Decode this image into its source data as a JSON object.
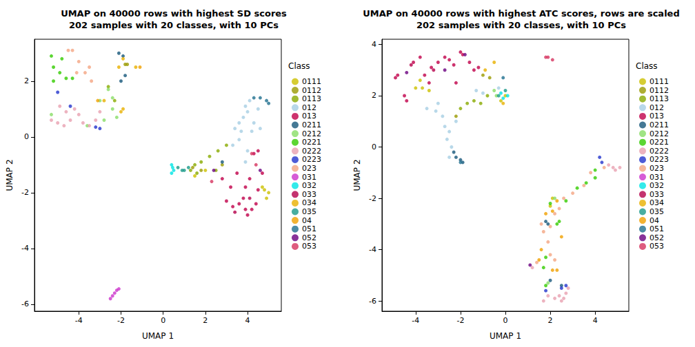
{
  "chart_data": [
    {
      "type": "scatter",
      "title": "UMAP on 40000 rows with highest SD scores\n202 samples with 20 classes, with 10 PCs",
      "x_label": "UMAP 1",
      "y_label": "UMAP 2",
      "legend_title": "Class",
      "legend": "right",
      "xlim": [
        -6.1,
        5.6
      ],
      "xticks": [
        -4,
        -2,
        0,
        2,
        4
      ],
      "ylim": [
        -6.25,
        3.5
      ],
      "yticks": [
        -6,
        -4,
        -2,
        0,
        2
      ],
      "series": [
        {
          "name": "0111",
          "color": "#CCC000",
          "x": [
            1.5,
            2.0,
            4.8,
            5.0,
            4.9,
            4.7
          ],
          "y": [
            -1.4,
            -1.2,
            -1.9,
            -2.0,
            -2.2,
            -1.8
          ]
        },
        {
          "name": "0112",
          "color": "#9A9A00",
          "x": [
            -1.8,
            -1.7,
            1.8,
            2.8,
            1.4
          ],
          "y": [
            2.6,
            2.6,
            -1.2,
            -1.0,
            -1.1
          ]
        },
        {
          "name": "0113",
          "color": "#88AA00",
          "x": [
            -2.6,
            -2.3,
            1.3,
            1.5,
            1.6,
            2.2,
            2.6,
            3.0,
            1.8,
            2.5
          ],
          "y": [
            1.8,
            1.3,
            -1.2,
            -1.0,
            -1.3,
            -0.7,
            -0.5,
            -0.3,
            -0.9,
            -1.2
          ]
        },
        {
          "name": "012",
          "color": "#A6CEE3",
          "x": [
            3.4,
            3.6,
            3.8,
            4.0,
            4.1,
            3.9,
            3.7,
            4.3,
            4.5,
            3.6,
            4.0,
            4.2,
            3.3,
            4.6,
            3.9
          ],
          "y": [
            0.3,
            0.5,
            0.7,
            0.9,
            1.3,
            1.1,
            0.2,
            0.5,
            1.0,
            -0.1,
            -0.5,
            0.2,
            -0.3,
            0.3,
            -0.9
          ]
        },
        {
          "name": "013",
          "color": "#C0004A",
          "x": [
            2.8,
            3.2,
            3.0,
            3.3,
            3.6,
            3.9,
            4.0,
            4.2,
            3.8,
            4.4,
            4.5,
            4.1,
            3.5,
            4.3,
            4.5,
            4.7,
            3.9
          ],
          "y": [
            -1.5,
            -1.8,
            -2.3,
            -2.5,
            -2.4,
            -2.6,
            -2.8,
            -2.6,
            -2.2,
            -2.4,
            -1.9,
            -1.5,
            -1.3,
            -0.6,
            -0.5,
            -1.3,
            -1.8
          ]
        },
        {
          "name": "0211",
          "color": "#17577A",
          "x": [
            -2.1,
            -1.9,
            -1.8,
            -2.0,
            2.8
          ],
          "y": [
            3.0,
            2.9,
            2.2,
            2.0,
            -0.9
          ]
        },
        {
          "name": "0212",
          "color": "#88DD66",
          "x": [
            -5.3,
            -3.6,
            -2.8,
            -2.4,
            -2.2,
            -2.6,
            -2.4,
            -3.0
          ],
          "y": [
            0.8,
            0.4,
            0.6,
            1.0,
            0.7,
            1.7,
            1.4,
            1.3
          ]
        },
        {
          "name": "0221",
          "color": "#33CC00",
          "x": [
            -5.3,
            -5.2,
            -4.9,
            -4.6,
            -4.8,
            -5.2,
            -4.3
          ],
          "y": [
            2.9,
            2.5,
            2.3,
            2.1,
            2.8,
            2.0,
            2.1
          ]
        },
        {
          "name": "0222",
          "color": "#E8A0B0",
          "x": [
            -5.3,
            -5.0,
            -4.7,
            -4.4,
            -4.6,
            -4.2,
            -3.8,
            -3.5,
            -3.2,
            -4.9,
            -3.0,
            -4.0
          ],
          "y": [
            0.6,
            0.5,
            0.4,
            0.6,
            0.9,
            1.0,
            0.5,
            0.4,
            0.6,
            1.1,
            0.9,
            0.8
          ]
        },
        {
          "name": "0223",
          "color": "#2233CC",
          "x": [
            -5.0,
            -3.2,
            -3.0,
            -4.4
          ],
          "y": [
            1.6,
            0.35,
            0.3,
            1.1
          ]
        },
        {
          "name": "023",
          "color": "#F4A582",
          "x": [
            -4.5,
            -4.3,
            -4.0,
            -3.7,
            -3.5,
            -4.1,
            -3.4
          ],
          "y": [
            3.1,
            3.1,
            2.7,
            2.3,
            2.5,
            2.3,
            2.0
          ]
        },
        {
          "name": "031",
          "color": "#CC33CC",
          "x": [
            -2.2,
            -2.3,
            -2.4,
            -2.5,
            -2.1
          ],
          "y": [
            -5.5,
            -5.6,
            -5.7,
            -5.8,
            -5.45
          ]
        },
        {
          "name": "032",
          "color": "#00E5E5",
          "x": [
            0.4,
            0.5,
            0.4,
            0.45
          ],
          "y": [
            -1.0,
            -1.2,
            -1.3,
            -1.1
          ]
        },
        {
          "name": "033",
          "color": "#B5004B",
          "x": [
            3.4,
            4.1
          ],
          "y": [
            -2.7,
            -2.2
          ]
        },
        {
          "name": "034",
          "color": "#E8B000",
          "x": [
            -2.8,
            -2.0,
            -1.9,
            -2.1,
            -1.9,
            -1.3
          ],
          "y": [
            1.3,
            0.9,
            1.0,
            2.5,
            2.8,
            2.5
          ]
        },
        {
          "name": "035",
          "color": "#1A9A8A",
          "x": [
            0.7,
            0.9,
            1.0,
            1.2
          ],
          "y": [
            -1.1,
            -1.2,
            -1.2,
            -1.1
          ]
        },
        {
          "name": "04",
          "color": "#F0A000",
          "x": [
            -3.1,
            -1.1
          ],
          "y": [
            1.3,
            2.5
          ]
        },
        {
          "name": "051",
          "color": "#1F6F8F",
          "x": [
            4.3,
            4.6,
            4.9,
            5.0
          ],
          "y": [
            1.4,
            1.4,
            1.3,
            1.2
          ]
        },
        {
          "name": "052",
          "color": "#6A0080",
          "x": [
            2.4,
            4.6
          ],
          "y": [
            -1.2,
            -1.2
          ]
        },
        {
          "name": "053",
          "color": "#D6335F",
          "x": [
            2.3,
            4.2,
            4.4
          ],
          "y": [
            -1.6,
            -0.6,
            -1.0
          ]
        }
      ]
    },
    {
      "type": "scatter",
      "title": "UMAP on 40000 rows with highest ATC scores, rows are scaled\n202 samples with 20 classes, with 10 PCs",
      "x_label": "UMAP 1",
      "y_label": "UMAP 2",
      "legend_title": "Class",
      "legend": "right",
      "xlim": [
        -5.5,
        5.5
      ],
      "xticks": [
        -4,
        -2,
        0,
        2,
        4
      ],
      "ylim": [
        -6.4,
        4.2
      ],
      "yticks": [
        -6,
        -4,
        -2,
        0,
        2,
        4
      ],
      "series": [
        {
          "name": "0111",
          "color": "#CCC000",
          "x": [
            -4.0,
            -3.7,
            -3.4,
            -3.8,
            0.0,
            -0.2,
            2.1,
            2.0
          ],
          "y": [
            2.3,
            2.3,
            2.2,
            2.6,
            2.0,
            1.8,
            -2.0,
            -2.3
          ]
        },
        {
          "name": "0112",
          "color": "#9A9A00",
          "x": [
            -2.2,
            -0.7,
            -1.0
          ],
          "y": [
            1.2,
            2.7,
            2.8
          ]
        },
        {
          "name": "0113",
          "color": "#88AA00",
          "x": [
            -2.0,
            -1.7,
            -1.4,
            -1.1,
            -0.8
          ],
          "y": [
            1.5,
            1.7,
            1.8,
            1.7,
            2.0
          ]
        },
        {
          "name": "012",
          "color": "#A6CEE3",
          "x": [
            -3.5,
            -3.1,
            -2.8,
            -2.7,
            -2.5,
            -2.6,
            -2.4,
            -2.5,
            -3.0,
            -1.3,
            -1.0,
            -0.3,
            -2.2
          ],
          "y": [
            1.5,
            1.4,
            1.2,
            0.8,
            0.6,
            0.3,
            0.0,
            -0.4,
            1.7,
            2.2,
            2.1,
            2.3,
            1.0
          ]
        },
        {
          "name": "013",
          "color": "#C0004A",
          "x": [
            -4.9,
            -4.8,
            -4.5,
            -4.4,
            -4.1,
            -3.8,
            -3.6,
            -3.3,
            -3.0,
            -2.7,
            -2.5,
            -2.3,
            -1.9,
            -1.6,
            -1.4,
            -2.2,
            -3.4,
            -2.0,
            -1.2
          ],
          "y": [
            2.7,
            2.8,
            2.0,
            1.8,
            3.3,
            3.5,
            2.8,
            3.1,
            3.3,
            3.5,
            3.4,
            3.2,
            3.6,
            3.3,
            3.0,
            2.5,
            2.5,
            3.7,
            3.1
          ]
        },
        {
          "name": "0211",
          "color": "#17577A",
          "x": [
            -2.3,
            -2.2,
            -2.0,
            -1.9,
            1.8,
            1.9,
            2.0,
            2.5
          ],
          "y": [
            -0.2,
            -0.4,
            -0.5,
            -0.6,
            -2.9,
            -3.0,
            -5.2,
            -5.4
          ]
        },
        {
          "name": "0212",
          "color": "#88DD66",
          "x": [
            -0.5,
            -0.4,
            1.9,
            2.2
          ],
          "y": [
            2.2,
            2.0,
            -5.3,
            -2.0
          ]
        },
        {
          "name": "0221",
          "color": "#33CC00",
          "x": [
            4.0,
            4.0,
            3.6,
            3.2,
            2.7,
            2.0,
            1.8,
            1.8,
            2.3,
            2.4,
            1.7
          ],
          "y": [
            -0.9,
            -1.2,
            -1.4,
            -1.6,
            -2.1,
            -2.2,
            -4.3,
            -5.4,
            -3.0,
            -2.9,
            -4.7
          ]
        },
        {
          "name": "0222",
          "color": "#E8A0B0",
          "x": [
            4.8,
            4.9,
            5.1,
            4.6,
            2.2,
            2.4,
            2.7,
            2.6,
            1.9,
            1.2,
            2.8,
            1.7,
            2.5
          ],
          "y": [
            -0.8,
            -0.9,
            -0.8,
            -0.7,
            -5.9,
            -5.8,
            -5.7,
            -5.9,
            -5.8,
            -4.7,
            -5.5,
            -6.0,
            -6.0
          ]
        },
        {
          "name": "0223",
          "color": "#2233CC",
          "x": [
            4.2,
            4.3,
            2.5,
            1.8,
            2.7
          ],
          "y": [
            -0.4,
            -0.6,
            -5.5,
            -5.6,
            -5.4
          ]
        },
        {
          "name": "023",
          "color": "#F4A582",
          "x": [
            4.4,
            3.8,
            3.5,
            3.0,
            2.6,
            2.4,
            2.2,
            2.0,
            1.7,
            1.9,
            2.0,
            1.4,
            1.6,
            2.2
          ],
          "y": [
            -0.8,
            -1.0,
            -1.5,
            -1.8,
            -2.0,
            -2.4,
            -2.6,
            -3.1,
            -3.3,
            -3.7,
            -4.2,
            -4.5,
            -3.0,
            -4.4
          ]
        },
        {
          "name": "031",
          "color": "#CC33CC",
          "x": [],
          "y": []
        },
        {
          "name": "032",
          "color": "#00E5E5",
          "x": [
            -0.2,
            0.1,
            -0.1
          ],
          "y": [
            2.1,
            2.0,
            1.9
          ]
        },
        {
          "name": "033",
          "color": "#B5004B",
          "x": [
            -4.2,
            -3.2
          ],
          "y": [
            3.2,
            3.0
          ]
        },
        {
          "name": "034",
          "color": "#E8B000",
          "x": [
            -0.5,
            -0.9,
            -0.1
          ],
          "y": [
            3.3,
            3.0,
            1.7
          ]
        },
        {
          "name": "035",
          "color": "#1A9A8A",
          "x": [
            -0.3,
            0.0
          ],
          "y": [
            2.0,
            2.2
          ]
        },
        {
          "name": "04",
          "color": "#F0A000",
          "x": [
            1.8,
            2.1,
            1.6,
            1.5,
            2.1,
            2.3,
            2.5,
            2.3
          ],
          "y": [
            -2.6,
            -2.5,
            -4.0,
            -4.4,
            -4.8,
            -4.8,
            -3.5,
            -2.1
          ]
        },
        {
          "name": "051",
          "color": "#1F6F8F",
          "x": [
            -0.1,
            -2.0
          ],
          "y": [
            2.7,
            -0.6
          ]
        },
        {
          "name": "052",
          "color": "#6A0080",
          "x": [
            -4.4,
            -2.7,
            -1.8,
            1.1
          ],
          "y": [
            2.9,
            3.0,
            3.6,
            -4.6
          ]
        },
        {
          "name": "053",
          "color": "#D6335F",
          "x": [
            1.8,
            1.9,
            2.1
          ],
          "y": [
            3.5,
            3.5,
            3.4
          ]
        }
      ]
    }
  ]
}
